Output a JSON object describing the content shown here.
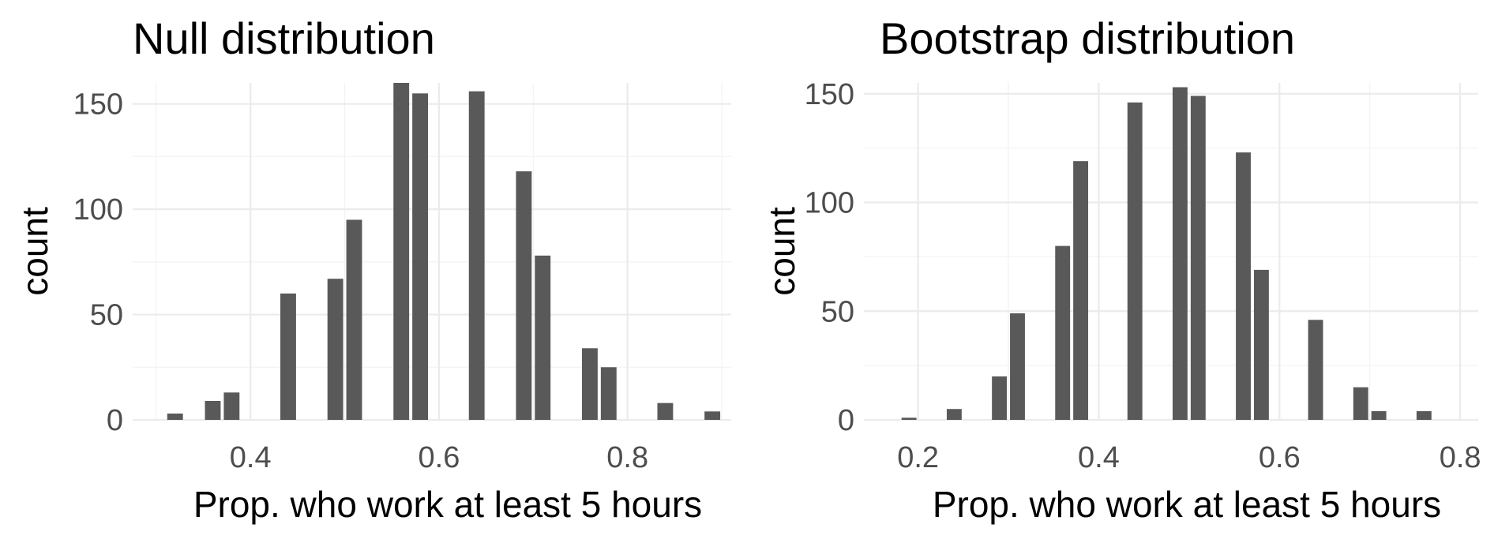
{
  "chart_data": [
    {
      "type": "bar",
      "title": "Null distribution",
      "xlabel": "Prop. who work at least 5 hours",
      "ylabel": "count",
      "xlim": [
        0.275,
        0.91
      ],
      "ylim": [
        0,
        160
      ],
      "xticks": [
        0.4,
        0.6,
        0.8
      ],
      "yticks": [
        0,
        50,
        100,
        150
      ],
      "grid": true,
      "bin_width": 0.02,
      "x": [
        0.32,
        0.36,
        0.38,
        0.44,
        0.49,
        0.51,
        0.56,
        0.58,
        0.64,
        0.69,
        0.71,
        0.76,
        0.78,
        0.84,
        0.89
      ],
      "values": [
        3,
        9,
        13,
        60,
        67,
        95,
        160,
        155,
        156,
        118,
        78,
        34,
        25,
        8,
        4
      ]
    },
    {
      "type": "bar",
      "title": "Bootstrap distribution",
      "xlabel": "Prop. who work at least 5 hours",
      "ylabel": "count",
      "xlim": [
        0.14,
        0.82
      ],
      "ylim": [
        0,
        155
      ],
      "xticks": [
        0.2,
        0.4,
        0.6,
        0.8
      ],
      "yticks": [
        0,
        50,
        100,
        150
      ],
      "grid": true,
      "bin_width": 0.02,
      "x": [
        0.16,
        0.19,
        0.24,
        0.29,
        0.31,
        0.36,
        0.38,
        0.44,
        0.49,
        0.51,
        0.56,
        0.58,
        0.64,
        0.69,
        0.71,
        0.76,
        0.79
      ],
      "values": [
        0,
        1,
        5,
        20,
        49,
        80,
        119,
        146,
        153,
        149,
        123,
        69,
        46,
        15,
        4,
        4,
        0
      ]
    }
  ]
}
